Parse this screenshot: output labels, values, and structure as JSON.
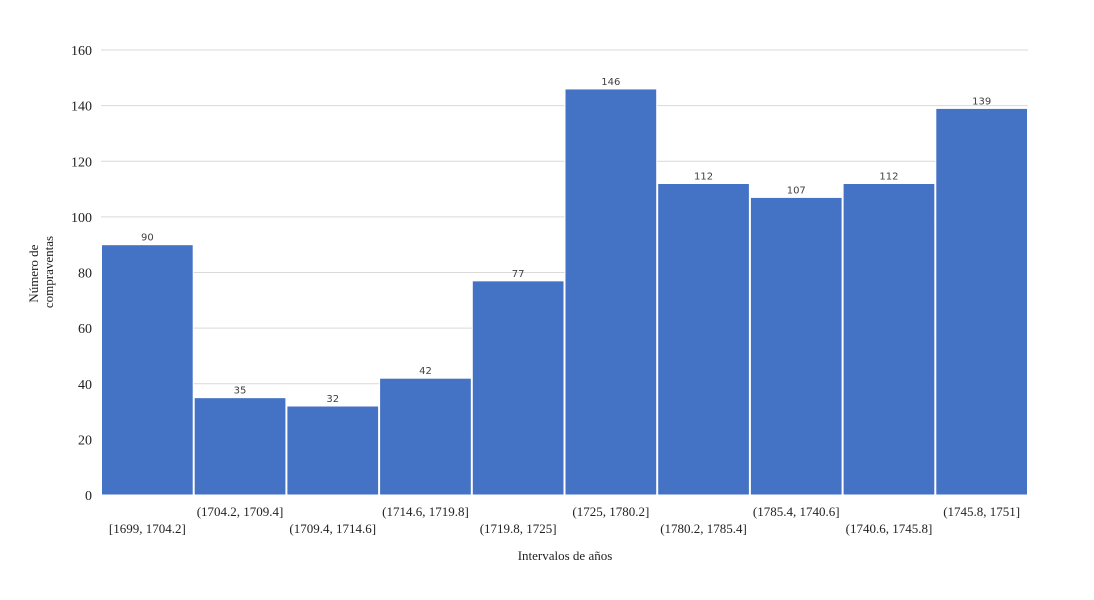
{
  "chart_data": {
    "type": "bar",
    "categories": [
      "[1699, 1704.2]",
      "(1704.2, 1709.4]",
      "(1709.4, 1714.6]",
      "(1714.6, 1719.8]",
      "(1719.8, 1725]",
      "(1725, 1780.2]",
      "(1780.2, 1785.4]",
      "(1785.4, 1740.6]",
      "(1740.6, 1745.8]",
      "(1745.8, 1751]"
    ],
    "values": [
      90,
      35,
      32,
      42,
      77,
      146,
      112,
      107,
      112,
      139
    ],
    "xlabel": "Intervalos de años",
    "ylabel_lines": [
      "Número de",
      "compraventas"
    ],
    "ylim": [
      0,
      160
    ],
    "yticks": [
      0,
      20,
      40,
      60,
      80,
      100,
      120,
      140,
      160
    ],
    "grid": true,
    "colors": {
      "bar": "#4472c4",
      "grid": "#d9d9d9"
    }
  }
}
